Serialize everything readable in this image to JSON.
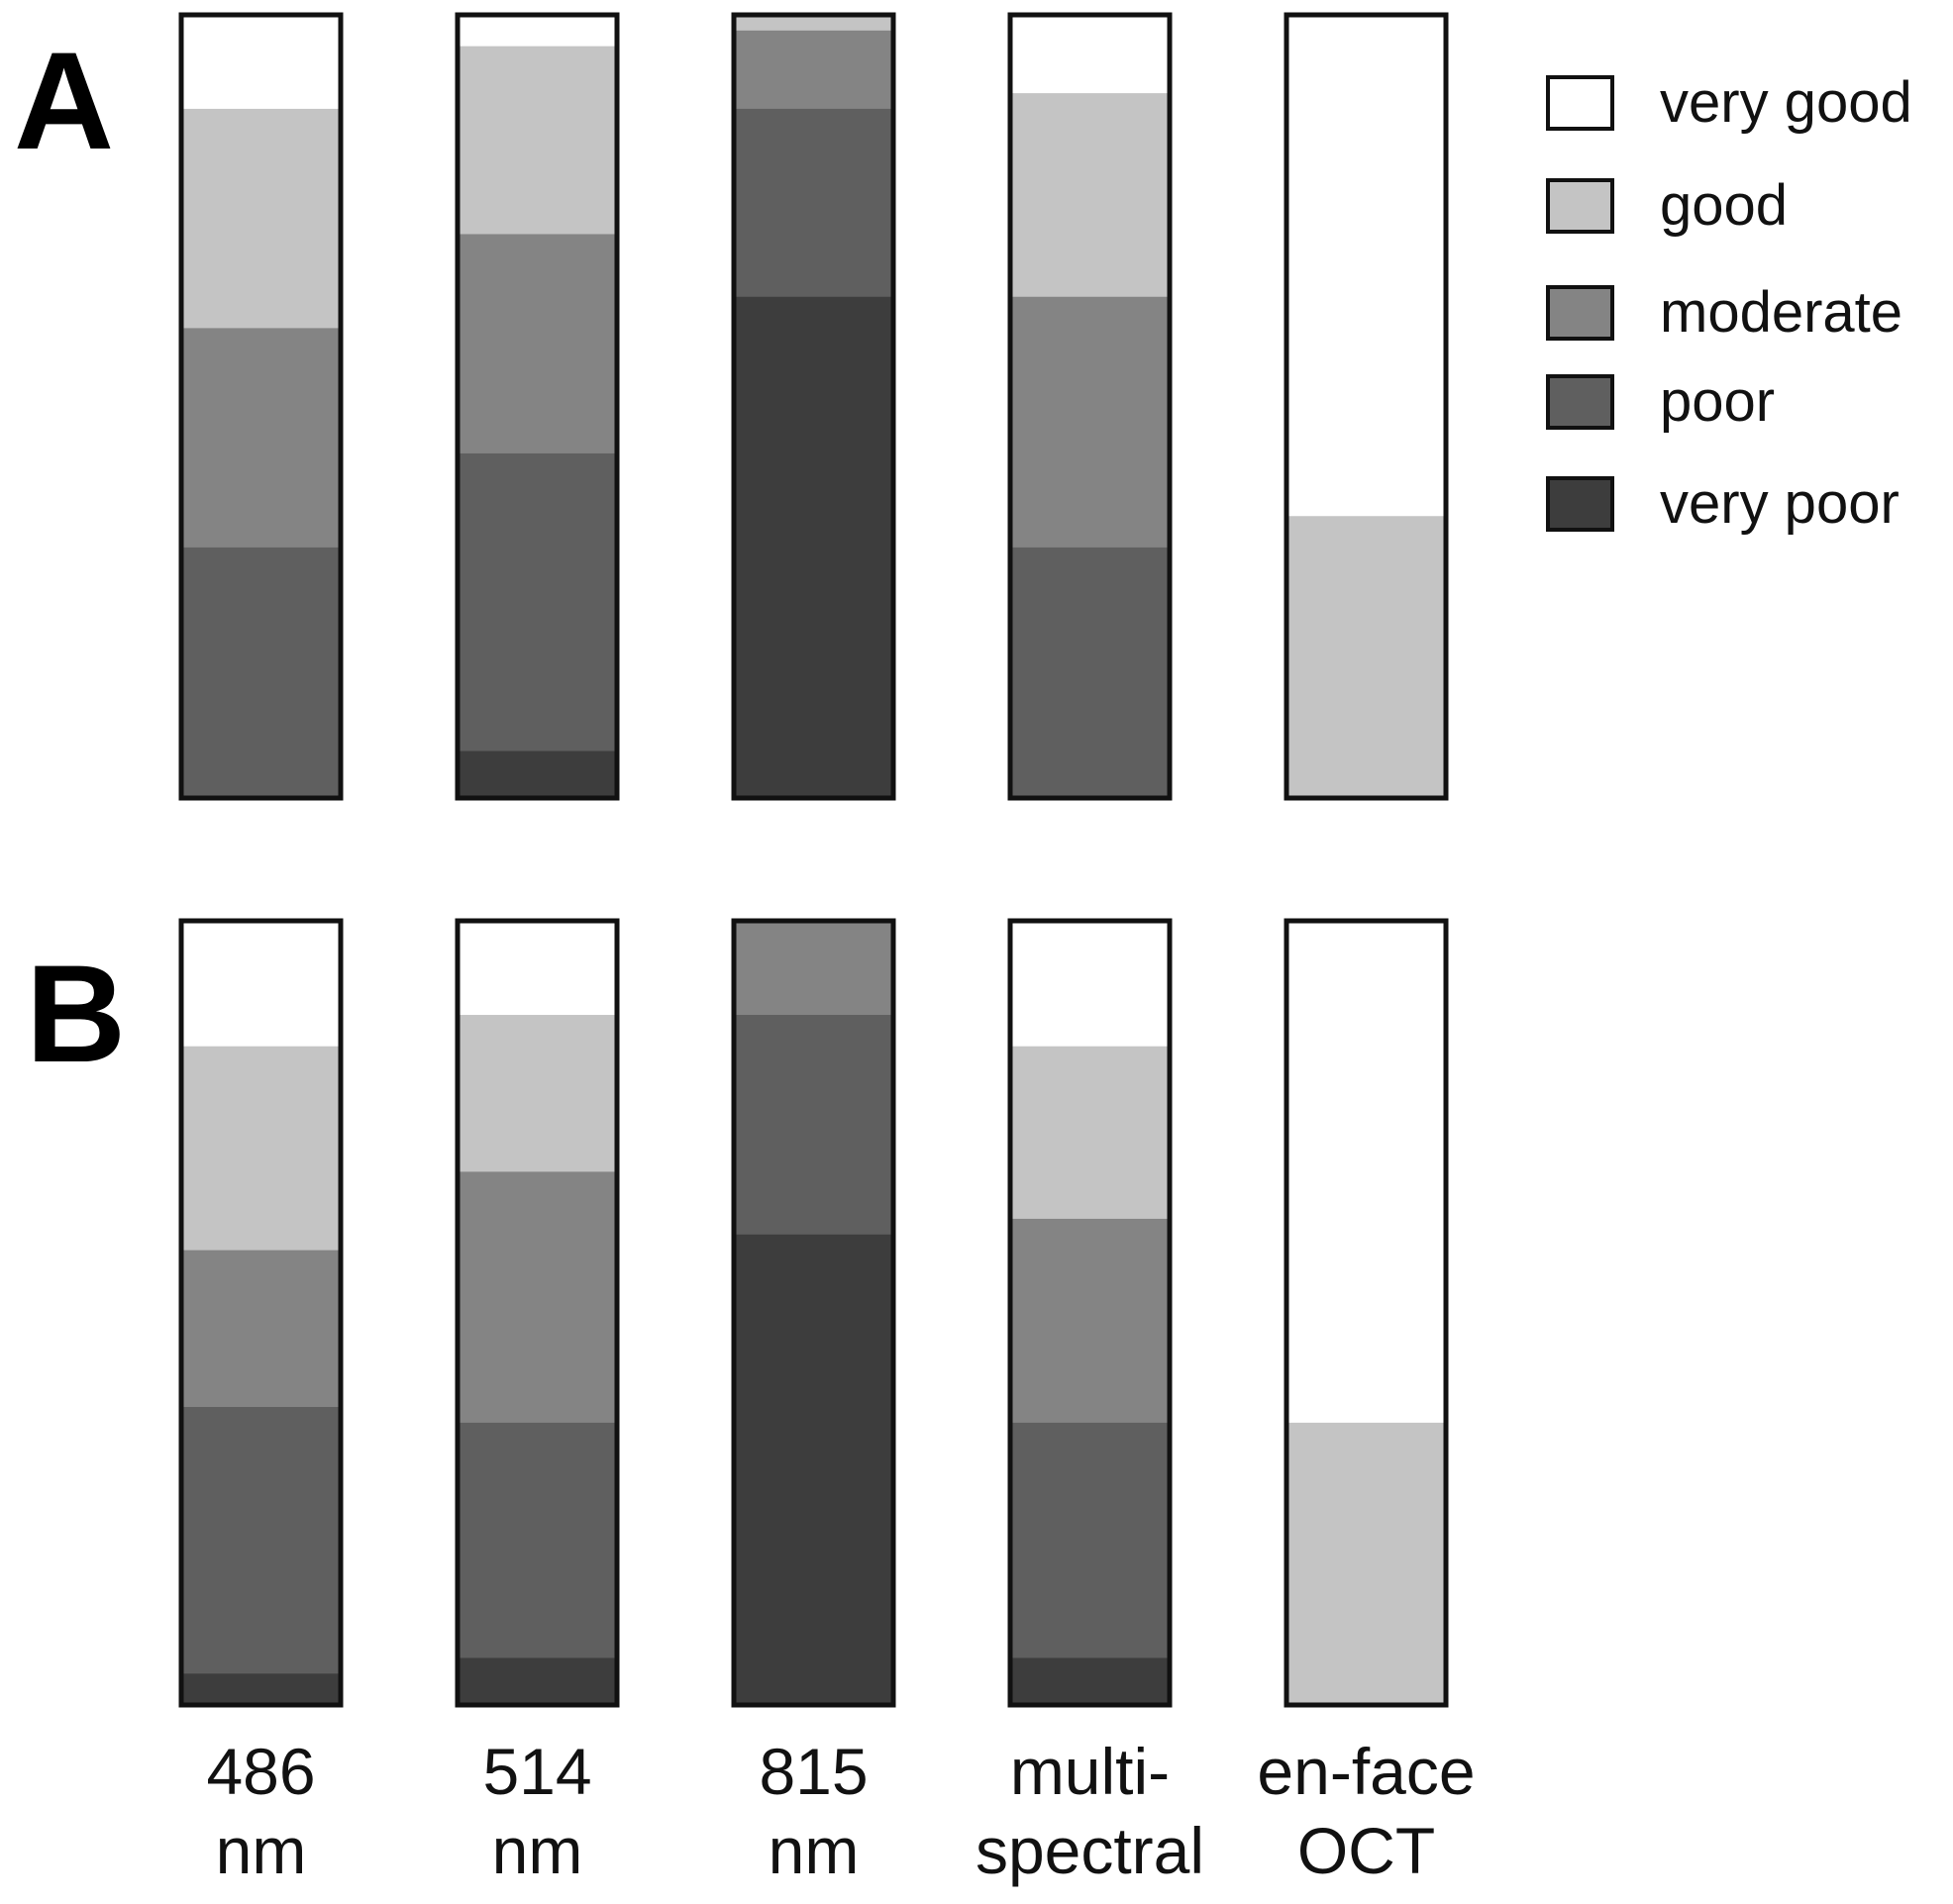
{
  "chart_data": {
    "type": "bar",
    "subtype": "100% stacked",
    "categories": [
      [
        "486",
        "nm"
      ],
      [
        "514",
        "nm"
      ],
      [
        "815",
        "nm"
      ],
      [
        "multi-",
        "spectral"
      ],
      [
        "en-face",
        "OCT"
      ]
    ],
    "legend": {
      "position": "top-right",
      "entries": [
        {
          "key": "very_good",
          "label": "very good",
          "color": "#ffffff"
        },
        {
          "key": "good",
          "label": "good",
          "color": "#c4c4c4"
        },
        {
          "key": "moderate",
          "label": "moderate",
          "color": "#848484"
        },
        {
          "key": "poor",
          "label": "poor",
          "color": "#5f5f5f"
        },
        {
          "key": "very_poor",
          "label": "very poor",
          "color": "#3d3d3d"
        }
      ]
    },
    "panels": [
      {
        "label": "A",
        "unit": "percent",
        "ylim": [
          0,
          100
        ],
        "stacks_top_to_bottom": [
          {
            "very_good": 12,
            "good": 28,
            "moderate": 28,
            "poor": 32,
            "very_poor": 0
          },
          {
            "very_good": 4,
            "good": 24,
            "moderate": 28,
            "poor": 38,
            "very_poor": 6
          },
          {
            "very_good": 0,
            "good": 2,
            "moderate": 10,
            "poor": 24,
            "very_poor": 64
          },
          {
            "very_good": 10,
            "good": 26,
            "moderate": 32,
            "poor": 32,
            "very_poor": 0
          },
          {
            "very_good": 64,
            "good": 36,
            "moderate": 0,
            "poor": 0,
            "very_poor": 0
          }
        ]
      },
      {
        "label": "B",
        "unit": "percent",
        "ylim": [
          0,
          100
        ],
        "stacks_top_to_bottom": [
          {
            "very_good": 16,
            "good": 26,
            "moderate": 20,
            "poor": 34,
            "very_poor": 4
          },
          {
            "very_good": 12,
            "good": 20,
            "moderate": 32,
            "poor": 30,
            "very_poor": 6
          },
          {
            "very_good": 0,
            "good": 0,
            "moderate": 12,
            "poor": 28,
            "very_poor": 60
          },
          {
            "very_good": 16,
            "good": 22,
            "moderate": 26,
            "poor": 30,
            "very_poor": 6
          },
          {
            "very_good": 64,
            "good": 36,
            "moderate": 0,
            "poor": 0,
            "very_poor": 0
          }
        ]
      }
    ]
  }
}
